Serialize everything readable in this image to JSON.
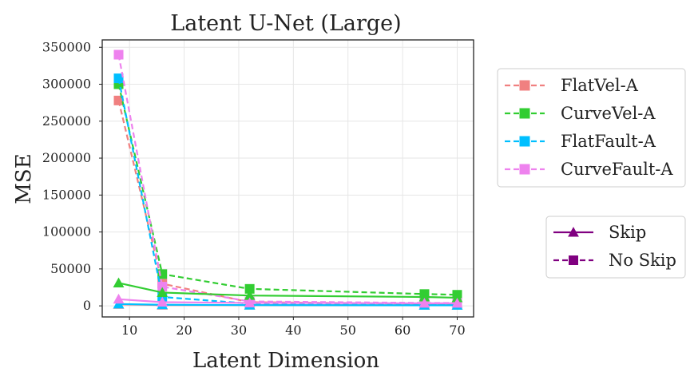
{
  "chart_data": {
    "type": "line",
    "title": "Latent U-Net (Large)",
    "xlabel": "Latent Dimension",
    "ylabel": "MSE",
    "xlim": [
      5,
      73
    ],
    "ylim": [
      -15000,
      360000
    ],
    "x_ticks": [
      10,
      20,
      30,
      40,
      50,
      60,
      70
    ],
    "x_tick_labels": [
      "10",
      "20",
      "30",
      "40",
      "50",
      "60",
      "70"
    ],
    "y_ticks": [
      0,
      50000,
      100000,
      150000,
      200000,
      250000,
      300000,
      350000
    ],
    "y_tick_labels": [
      "0",
      "50000",
      "100000",
      "150000",
      "200000",
      "250000",
      "300000",
      "350000"
    ],
    "grid": true,
    "x": [
      8,
      16,
      32,
      64,
      70
    ],
    "series": [
      {
        "name": "FlatVel-A",
        "variant": "No Skip",
        "color": "#f08080",
        "linestyle": "dashed",
        "marker": "square",
        "values": [
          278000,
          30000,
          5000,
          3000,
          3000
        ]
      },
      {
        "name": "CurveVel-A",
        "variant": "No Skip",
        "color": "#32cd32",
        "linestyle": "dashed",
        "marker": "square",
        "values": [
          300000,
          43000,
          23000,
          16000,
          15000
        ]
      },
      {
        "name": "FlatFault-A",
        "variant": "No Skip",
        "color": "#00bfff",
        "linestyle": "dashed",
        "marker": "square",
        "values": [
          308000,
          12000,
          3000,
          2000,
          1500
        ]
      },
      {
        "name": "CurveFault-A",
        "variant": "No Skip",
        "color": "#ee82ee",
        "linestyle": "dashed",
        "marker": "square",
        "values": [
          340000,
          26000,
          6000,
          4000,
          4000
        ]
      },
      {
        "name": "FlatVel-A",
        "variant": "Skip",
        "color": "#f08080",
        "linestyle": "solid",
        "marker": "triangle",
        "values": [
          2000,
          1000,
          1000,
          800,
          800
        ]
      },
      {
        "name": "CurveVel-A",
        "variant": "Skip",
        "color": "#32cd32",
        "linestyle": "solid",
        "marker": "triangle",
        "values": [
          31000,
          18000,
          14000,
          12000,
          11000
        ]
      },
      {
        "name": "FlatFault-A",
        "variant": "Skip",
        "color": "#00bfff",
        "linestyle": "solid",
        "marker": "triangle",
        "values": [
          2500,
          1500,
          1000,
          800,
          800
        ]
      },
      {
        "name": "CurveFault-A",
        "variant": "Skip",
        "color": "#ee82ee",
        "linestyle": "solid",
        "marker": "triangle",
        "values": [
          9000,
          5000,
          4000,
          3500,
          3500
        ]
      }
    ],
    "legend_datasets": {
      "placement": "right-upper",
      "entries": [
        {
          "label": "FlatVel-A",
          "color": "#f08080"
        },
        {
          "label": "CurveVel-A",
          "color": "#32cd32"
        },
        {
          "label": "FlatFault-A",
          "color": "#00bfff"
        },
        {
          "label": "CurveFault-A",
          "color": "#ee82ee"
        }
      ]
    },
    "legend_style": {
      "placement": "right-lower",
      "entries": [
        {
          "label": "Skip",
          "color": "#800080",
          "linestyle": "solid",
          "marker": "triangle"
        },
        {
          "label": "No Skip",
          "color": "#800080",
          "linestyle": "dashed",
          "marker": "square"
        }
      ]
    }
  }
}
